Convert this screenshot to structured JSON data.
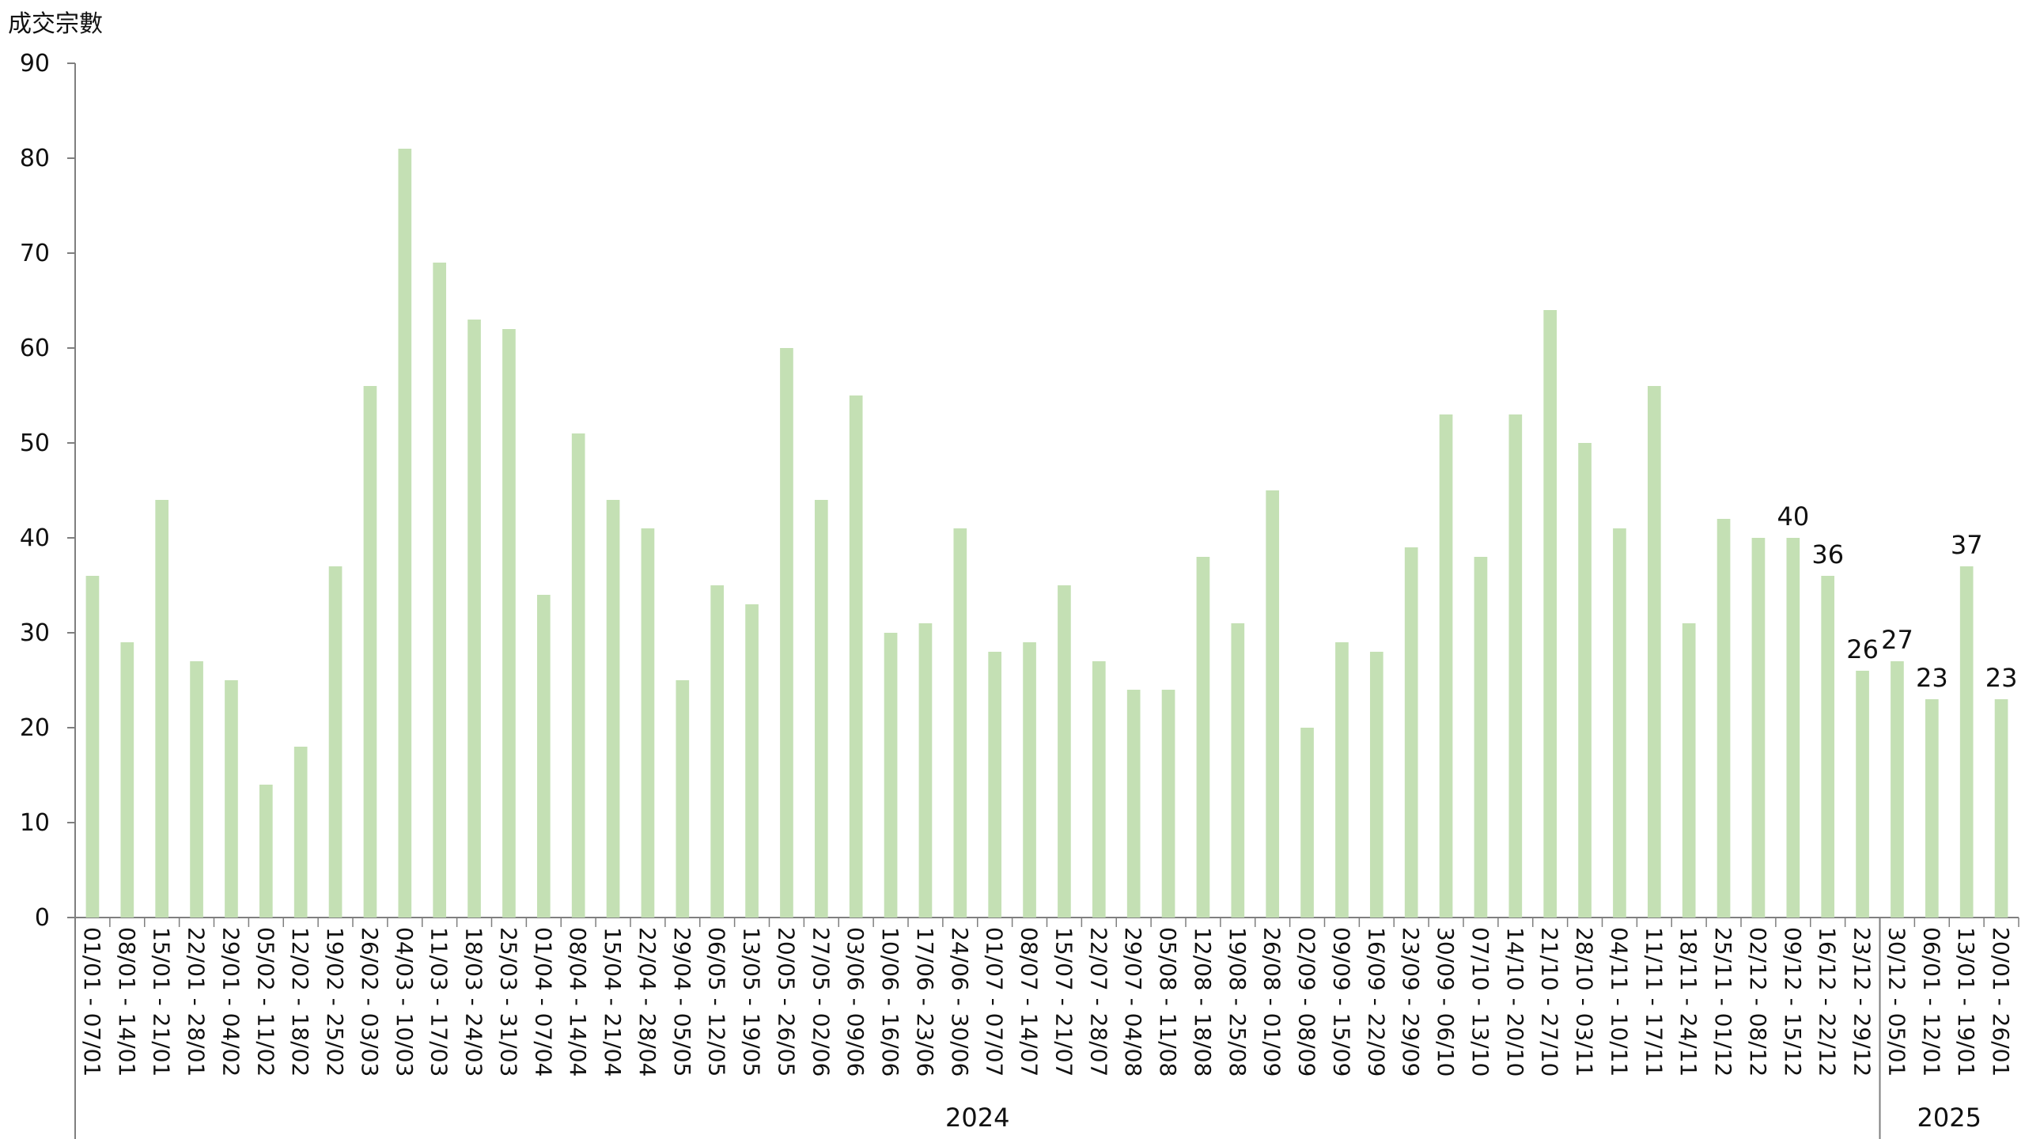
{
  "chart_data": {
    "type": "bar",
    "title": "",
    "xlabel": "",
    "ylabel": "成交宗數",
    "ylim": [
      0,
      90
    ],
    "yticks": [
      0,
      10,
      20,
      30,
      40,
      50,
      60,
      70,
      80,
      90
    ],
    "grid": false,
    "bar_color": "#c4e0b4",
    "categories": [
      "01/01 - 07/01",
      "08/01 - 14/01",
      "15/01 - 21/01",
      "22/01 - 28/01",
      "29/01 - 04/02",
      "05/02 - 11/02",
      "12/02 - 18/02",
      "19/02 - 25/02",
      "26/02 - 03/03",
      "04/03 - 10/03",
      "11/03 - 17/03",
      "18/03 - 24/03",
      "25/03 - 31/03",
      "01/04 - 07/04",
      "08/04 - 14/04",
      "15/04 - 21/04",
      "22/04 - 28/04",
      "29/04 - 05/05",
      "06/05 - 12/05",
      "13/05 - 19/05",
      "20/05 - 26/05",
      "27/05 - 02/06",
      "03/06 - 09/06",
      "10/06 - 16/06",
      "17/06 - 23/06",
      "24/06 - 30/06",
      "01/07 - 07/07",
      "08/07 - 14/07",
      "15/07 - 21/07",
      "22/07 - 28/07",
      "29/07 - 04/08",
      "05/08 - 11/08",
      "12/08 - 18/08",
      "19/08 - 25/08",
      "26/08 - 01/09",
      "02/09 - 08/09",
      "09/09 - 15/09",
      "16/09 - 22/09",
      "23/09 - 29/09",
      "30/09 - 06/10",
      "07/10 - 13/10",
      "14/10 - 20/10",
      "21/10 - 27/10",
      "28/10 - 03/11",
      "04/11 - 10/11",
      "11/11 - 17/11",
      "18/11 - 24/11",
      "25/11 - 01/12",
      "02/12 - 08/12",
      "09/12 - 15/12",
      "16/12 - 22/12",
      "23/12 - 29/12",
      "30/12 - 05/01",
      "06/01 - 12/01",
      "13/01 - 19/01",
      "20/01 - 26/01"
    ],
    "values": [
      36,
      29,
      44,
      27,
      25,
      14,
      18,
      37,
      56,
      81,
      69,
      63,
      62,
      34,
      51,
      44,
      41,
      25,
      35,
      33,
      60,
      44,
      55,
      30,
      31,
      41,
      28,
      29,
      35,
      27,
      24,
      24,
      38,
      31,
      45,
      20,
      29,
      28,
      39,
      53,
      38,
      53,
      64,
      50,
      41,
      56,
      31,
      42,
      40,
      40,
      36,
      26,
      27,
      23,
      37,
      23
    ],
    "data_labels": [
      {
        "index": 49,
        "text": "40"
      },
      {
        "index": 50,
        "text": "36"
      },
      {
        "index": 51,
        "text": "26"
      },
      {
        "index": 52,
        "text": "27"
      },
      {
        "index": 53,
        "text": "23"
      },
      {
        "index": 54,
        "text": "37"
      },
      {
        "index": 55,
        "text": "23"
      }
    ],
    "year_groups": [
      {
        "label": "2024",
        "start": 0,
        "end": 51
      },
      {
        "label": "2025",
        "start": 52,
        "end": 55
      }
    ]
  }
}
